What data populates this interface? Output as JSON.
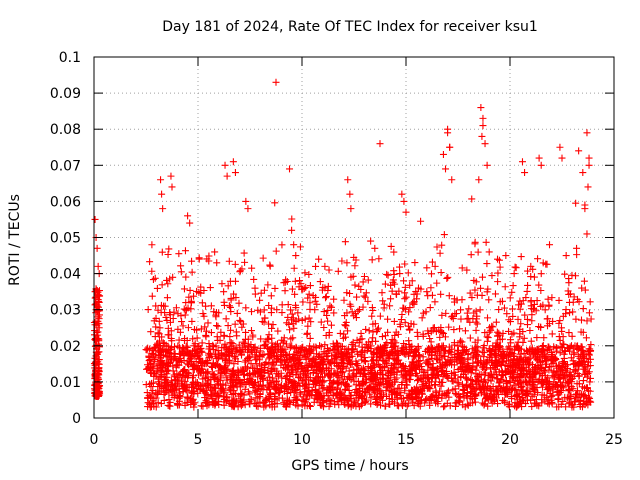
{
  "chart_data": {
    "type": "scatter",
    "title": "Day 181 of 2024, Rate Of TEC Index for receiver ksu1",
    "xlabel": "GPS time / hours",
    "ylabel": "ROTI / TECUs",
    "xlim": [
      0,
      25
    ],
    "ylim": [
      0,
      0.1
    ],
    "xticks": [
      "0",
      "5",
      "10",
      "15",
      "20",
      "25"
    ],
    "yticks": [
      "0",
      "0.01",
      "0.02",
      "0.03",
      "0.04",
      "0.05",
      "0.06",
      "0.07",
      "0.08",
      "0.09",
      "0.1"
    ],
    "grid": true,
    "marker": "+",
    "color": "#ff0000",
    "series": [
      {
        "x": [
          0.05,
          0.1,
          0.15,
          0.2,
          0.25,
          0.05,
          0.1,
          0.2,
          0.25,
          0.1,
          0.15,
          0.2,
          0.05,
          0.25,
          0.15,
          0.1,
          0.2,
          0.25,
          8.75,
          13.75,
          17.0,
          17.1,
          18.6,
          18.7,
          18.65,
          23.7,
          23.8,
          23.75,
          23.6,
          17.2,
          16.9,
          18.5,
          3.2,
          3.25,
          3.3,
          3.7,
          3.75,
          6.3,
          6.4,
          6.7,
          6.8,
          7.3,
          7.4,
          9.4,
          9.5,
          9.6,
          9.7,
          12.2,
          12.3,
          12.35,
          14.8,
          14.9,
          15.0,
          16.8,
          17.0,
          17.1,
          18.7,
          18.8,
          18.9,
          20.6,
          20.7,
          21.4,
          21.5,
          22.4,
          22.5,
          23.3,
          23.5,
          23.6,
          23.7,
          23.8,
          4.5,
          4.6,
          5.8,
          5.9,
          10.8,
          11.1,
          11.3,
          13.3,
          13.5,
          14.7,
          15.3,
          15.6,
          16.0,
          16.4,
          19.0,
          19.4,
          19.8,
          20.2,
          21.0,
          21.9,
          22.7,
          23.2
        ],
        "y": [
          0.055,
          0.05,
          0.047,
          0.042,
          0.04,
          0.035,
          0.03,
          0.028,
          0.025,
          0.02,
          0.018,
          0.015,
          0.012,
          0.01,
          0.008,
          0.006,
          0.022,
          0.032,
          0.093,
          0.076,
          0.08,
          0.075,
          0.086,
          0.083,
          0.078,
          0.079,
          0.072,
          0.064,
          0.059,
          0.066,
          0.069,
          0.066,
          0.066,
          0.062,
          0.058,
          0.067,
          0.064,
          0.07,
          0.067,
          0.071,
          0.068,
          0.06,
          0.058,
          0.069,
          0.052,
          0.048,
          0.045,
          0.066,
          0.062,
          0.058,
          0.062,
          0.06,
          0.057,
          0.073,
          0.079,
          0.075,
          0.081,
          0.076,
          0.07,
          0.071,
          0.068,
          0.072,
          0.07,
          0.075,
          0.072,
          0.074,
          0.068,
          0.058,
          0.051,
          0.07,
          0.056,
          0.054,
          0.046,
          0.043,
          0.044,
          0.042,
          0.041,
          0.049,
          0.047,
          0.04,
          0.038,
          0.036,
          0.035,
          0.042,
          0.046,
          0.044,
          0.045,
          0.04,
          0.042,
          0.048,
          0.045,
          0.047
        ]
      }
    ]
  }
}
